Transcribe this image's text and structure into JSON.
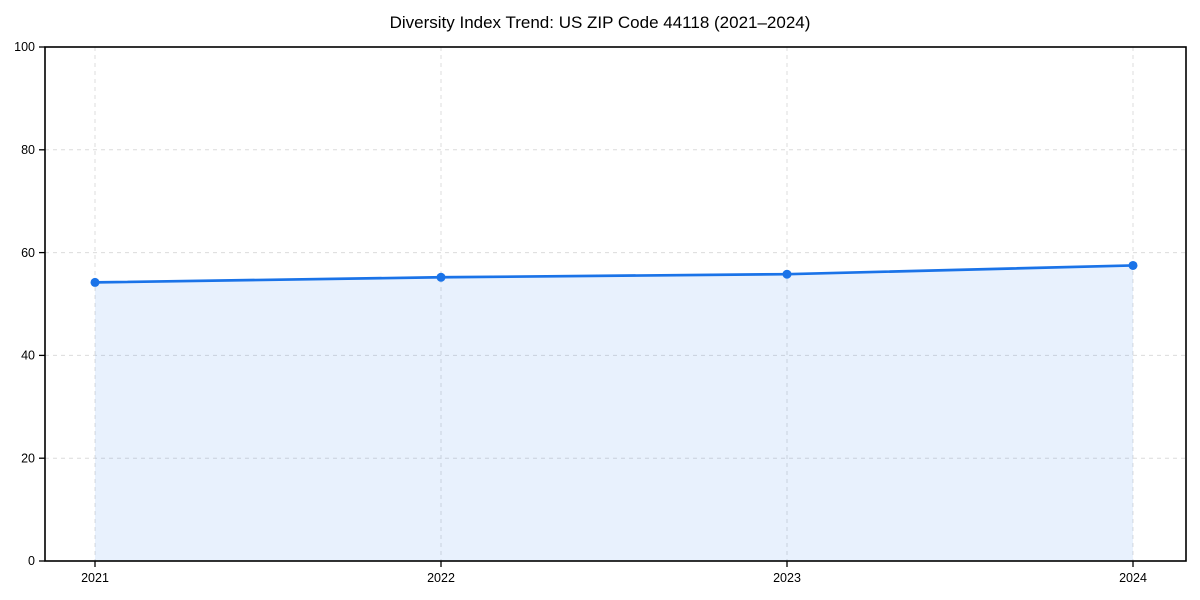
{
  "chart_data": {
    "type": "area",
    "title": "Diversity Index Trend: US ZIP Code 44118 (2021–2024)",
    "xlabel": "",
    "ylabel": "",
    "x": [
      2021,
      2022,
      2023,
      2024
    ],
    "xtick_labels": [
      "2021",
      "2022",
      "2023",
      "2024"
    ],
    "series": [
      {
        "name": "Diversity Index",
        "values": [
          54.2,
          55.2,
          55.8,
          57.5
        ]
      }
    ],
    "ylim": [
      0,
      100
    ],
    "yticks": [
      0,
      20,
      40,
      60,
      80,
      100
    ],
    "grid": "dashed",
    "legend_position": "none",
    "marker": "circle",
    "colors": {
      "line": "#1a73e8",
      "marker": "#1a73e8",
      "area_fill": "rgba(26,115,232,0.10)",
      "grid": "#dcdcdc",
      "spine": "#000000",
      "tick_label": "#000000",
      "title": "#000000",
      "background": "#ffffff"
    }
  }
}
